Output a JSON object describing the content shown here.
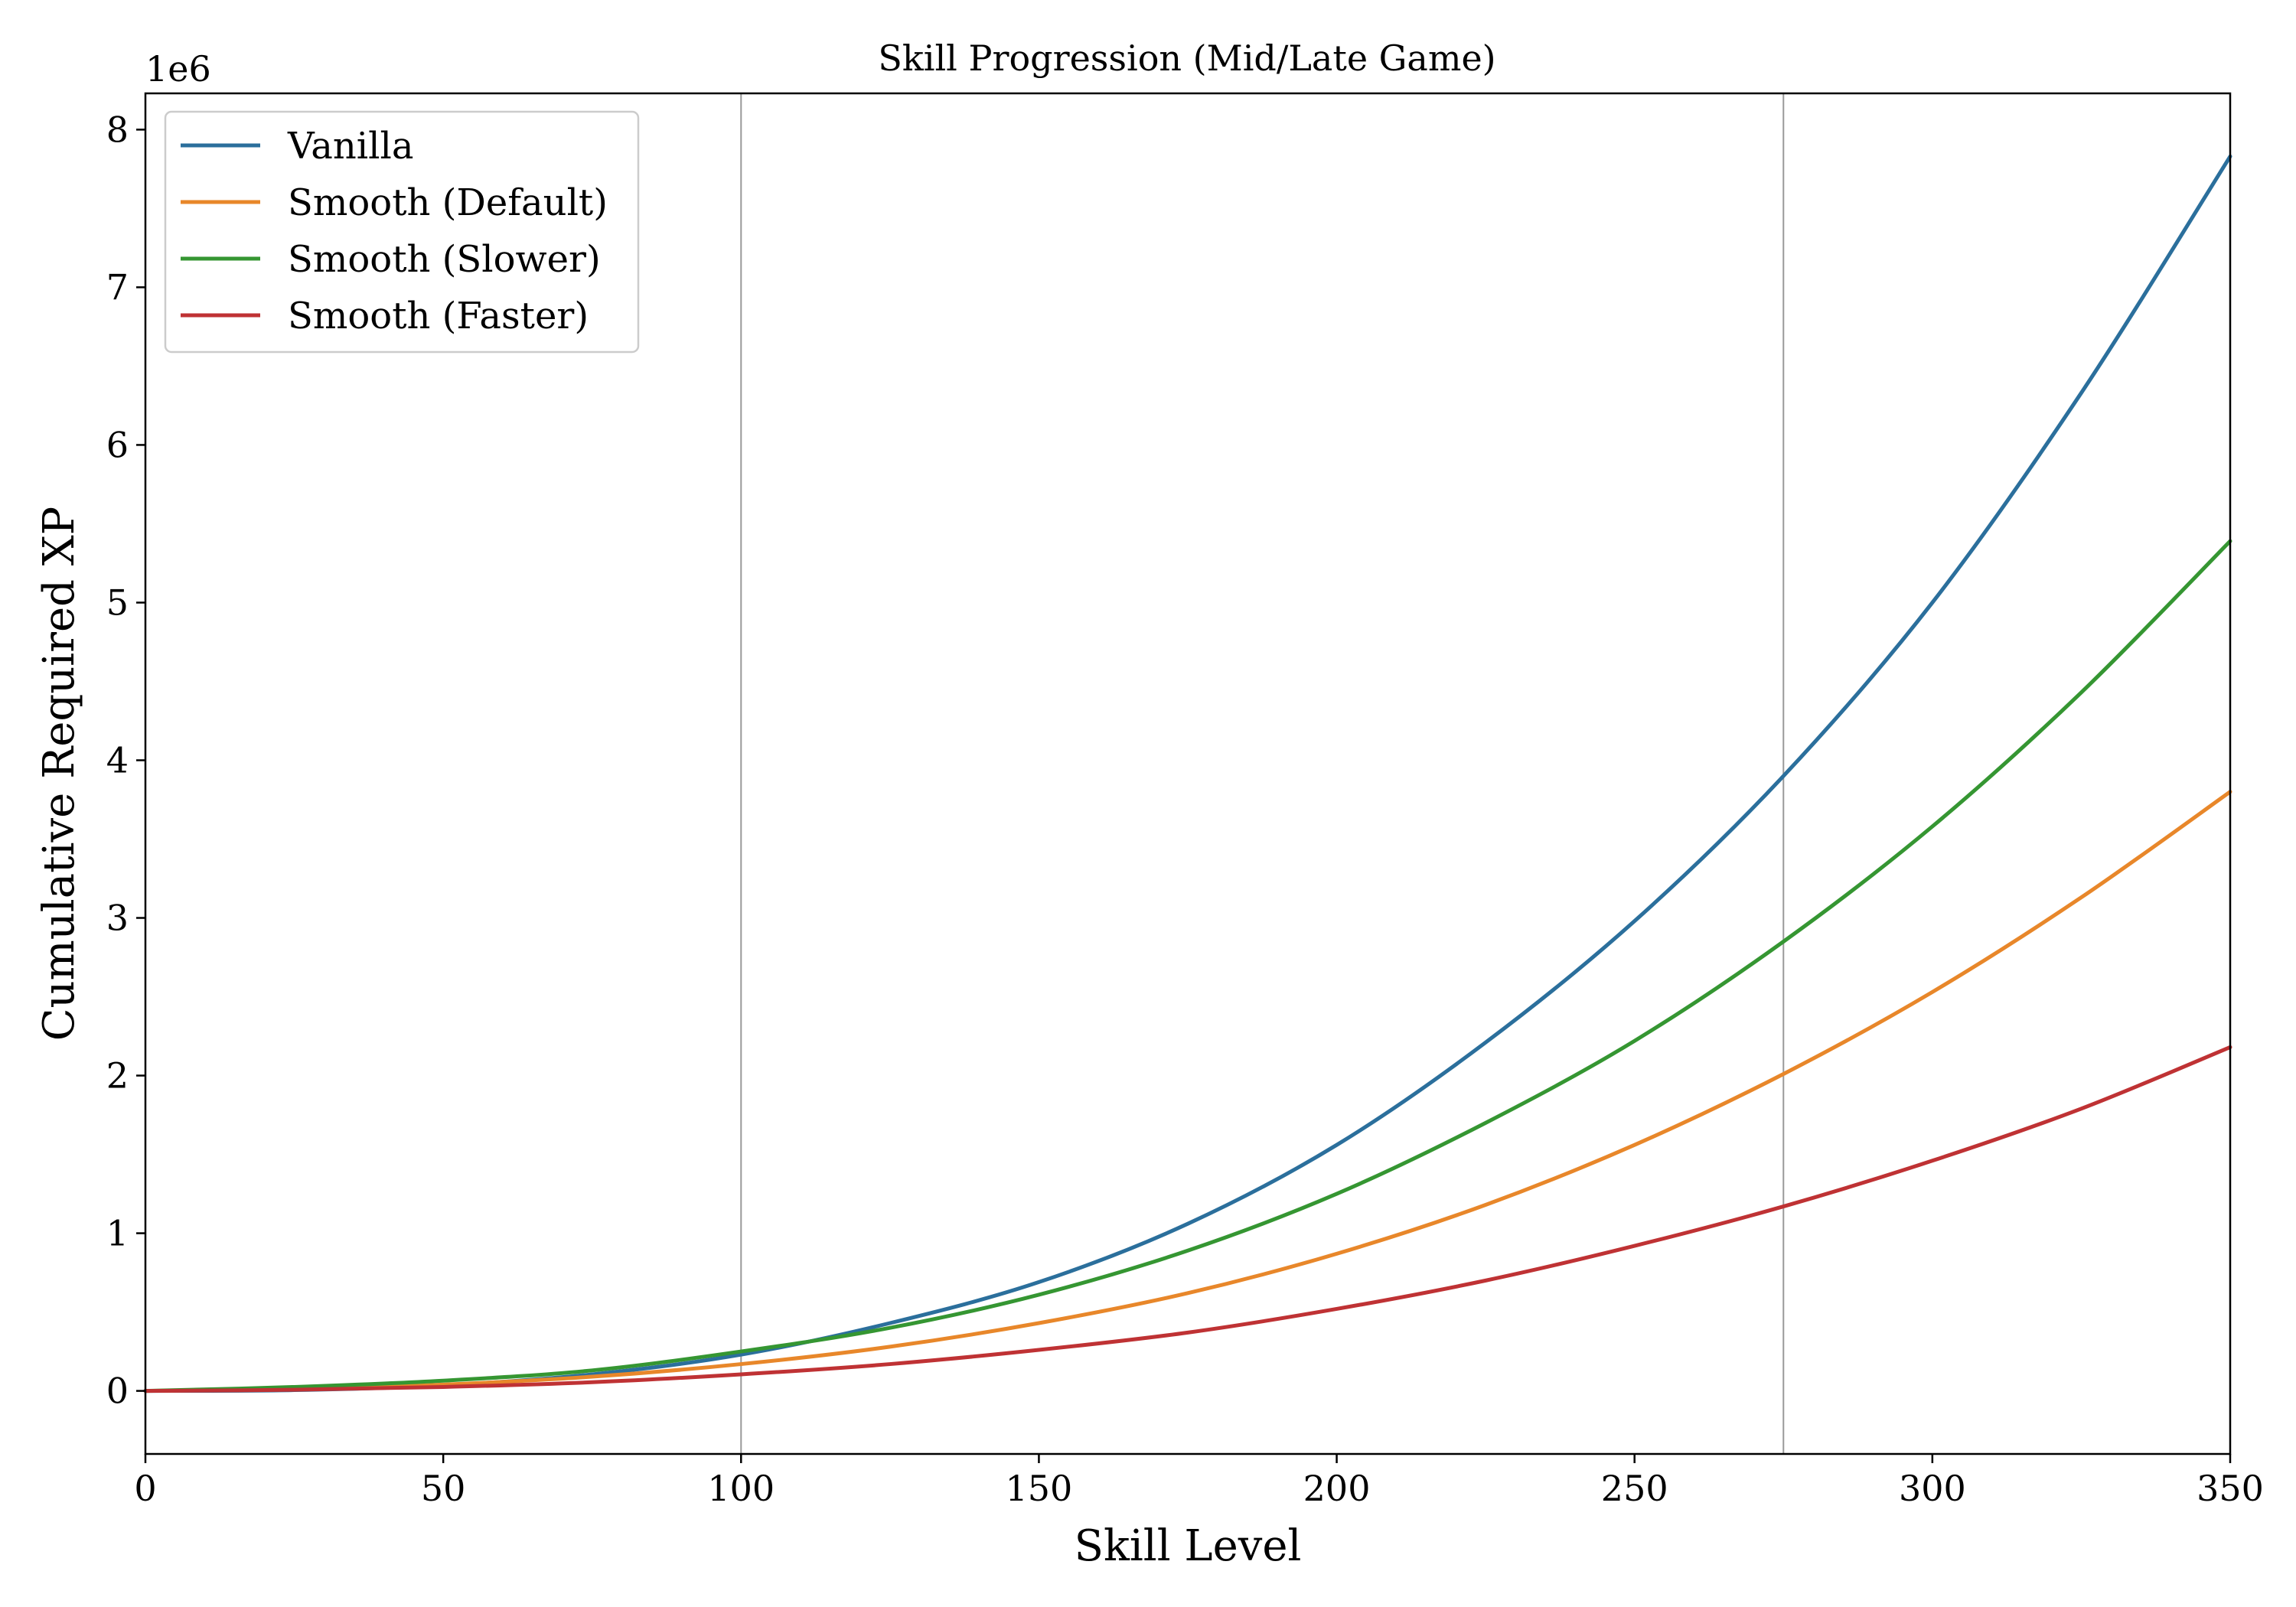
{
  "chart_data": {
    "type": "line",
    "title": "Skill Progression (Mid/Late Game)",
    "xlabel": "Skill Level",
    "ylabel": "Cumulative Required XP",
    "y_offset_label": "1e6",
    "xlim": [
      0,
      350
    ],
    "ylim": [
      -400000,
      8230000
    ],
    "x_ticks": [
      0,
      50,
      100,
      150,
      200,
      250,
      300,
      350
    ],
    "y_ticks": [
      0,
      1000000,
      2000000,
      3000000,
      4000000,
      5000000,
      6000000,
      7000000,
      8000000
    ],
    "y_tick_labels": [
      "0",
      "1",
      "2",
      "3",
      "4",
      "5",
      "6",
      "7",
      "8"
    ],
    "vertical_lines": [
      100,
      275
    ],
    "grid": false,
    "legend_position": "top-left",
    "x": [
      0,
      25,
      50,
      75,
      100,
      125,
      150,
      175,
      200,
      225,
      250,
      275,
      300,
      325,
      350
    ],
    "series": [
      {
        "name": "Vanilla",
        "color": "#2b6f9c",
        "values": [
          0,
          5000,
          35000,
          105000,
          230000,
          430000,
          690000,
          1060000,
          1560000,
          2210000,
          2980000,
          3900000,
          5000000,
          6330000,
          7830000
        ]
      },
      {
        "name": "Smooth (Default)",
        "color": "#e8872a",
        "values": [
          0,
          12000,
          40000,
          90000,
          170000,
          280000,
          430000,
          620000,
          870000,
          1180000,
          1560000,
          2010000,
          2530000,
          3130000,
          3800000
        ]
      },
      {
        "name": "Smooth (Slower)",
        "color": "#359632",
        "values": [
          0,
          25000,
          65000,
          130000,
          250000,
          400000,
          610000,
          890000,
          1250000,
          1700000,
          2220000,
          2850000,
          3580000,
          4430000,
          5390000
        ]
      },
      {
        "name": "Smooth (Faster)",
        "color": "#bf3234",
        "values": [
          0,
          7000,
          25000,
          55000,
          105000,
          170000,
          260000,
          370000,
          520000,
          700000,
          920000,
          1170000,
          1460000,
          1790000,
          2180000
        ]
      }
    ]
  }
}
